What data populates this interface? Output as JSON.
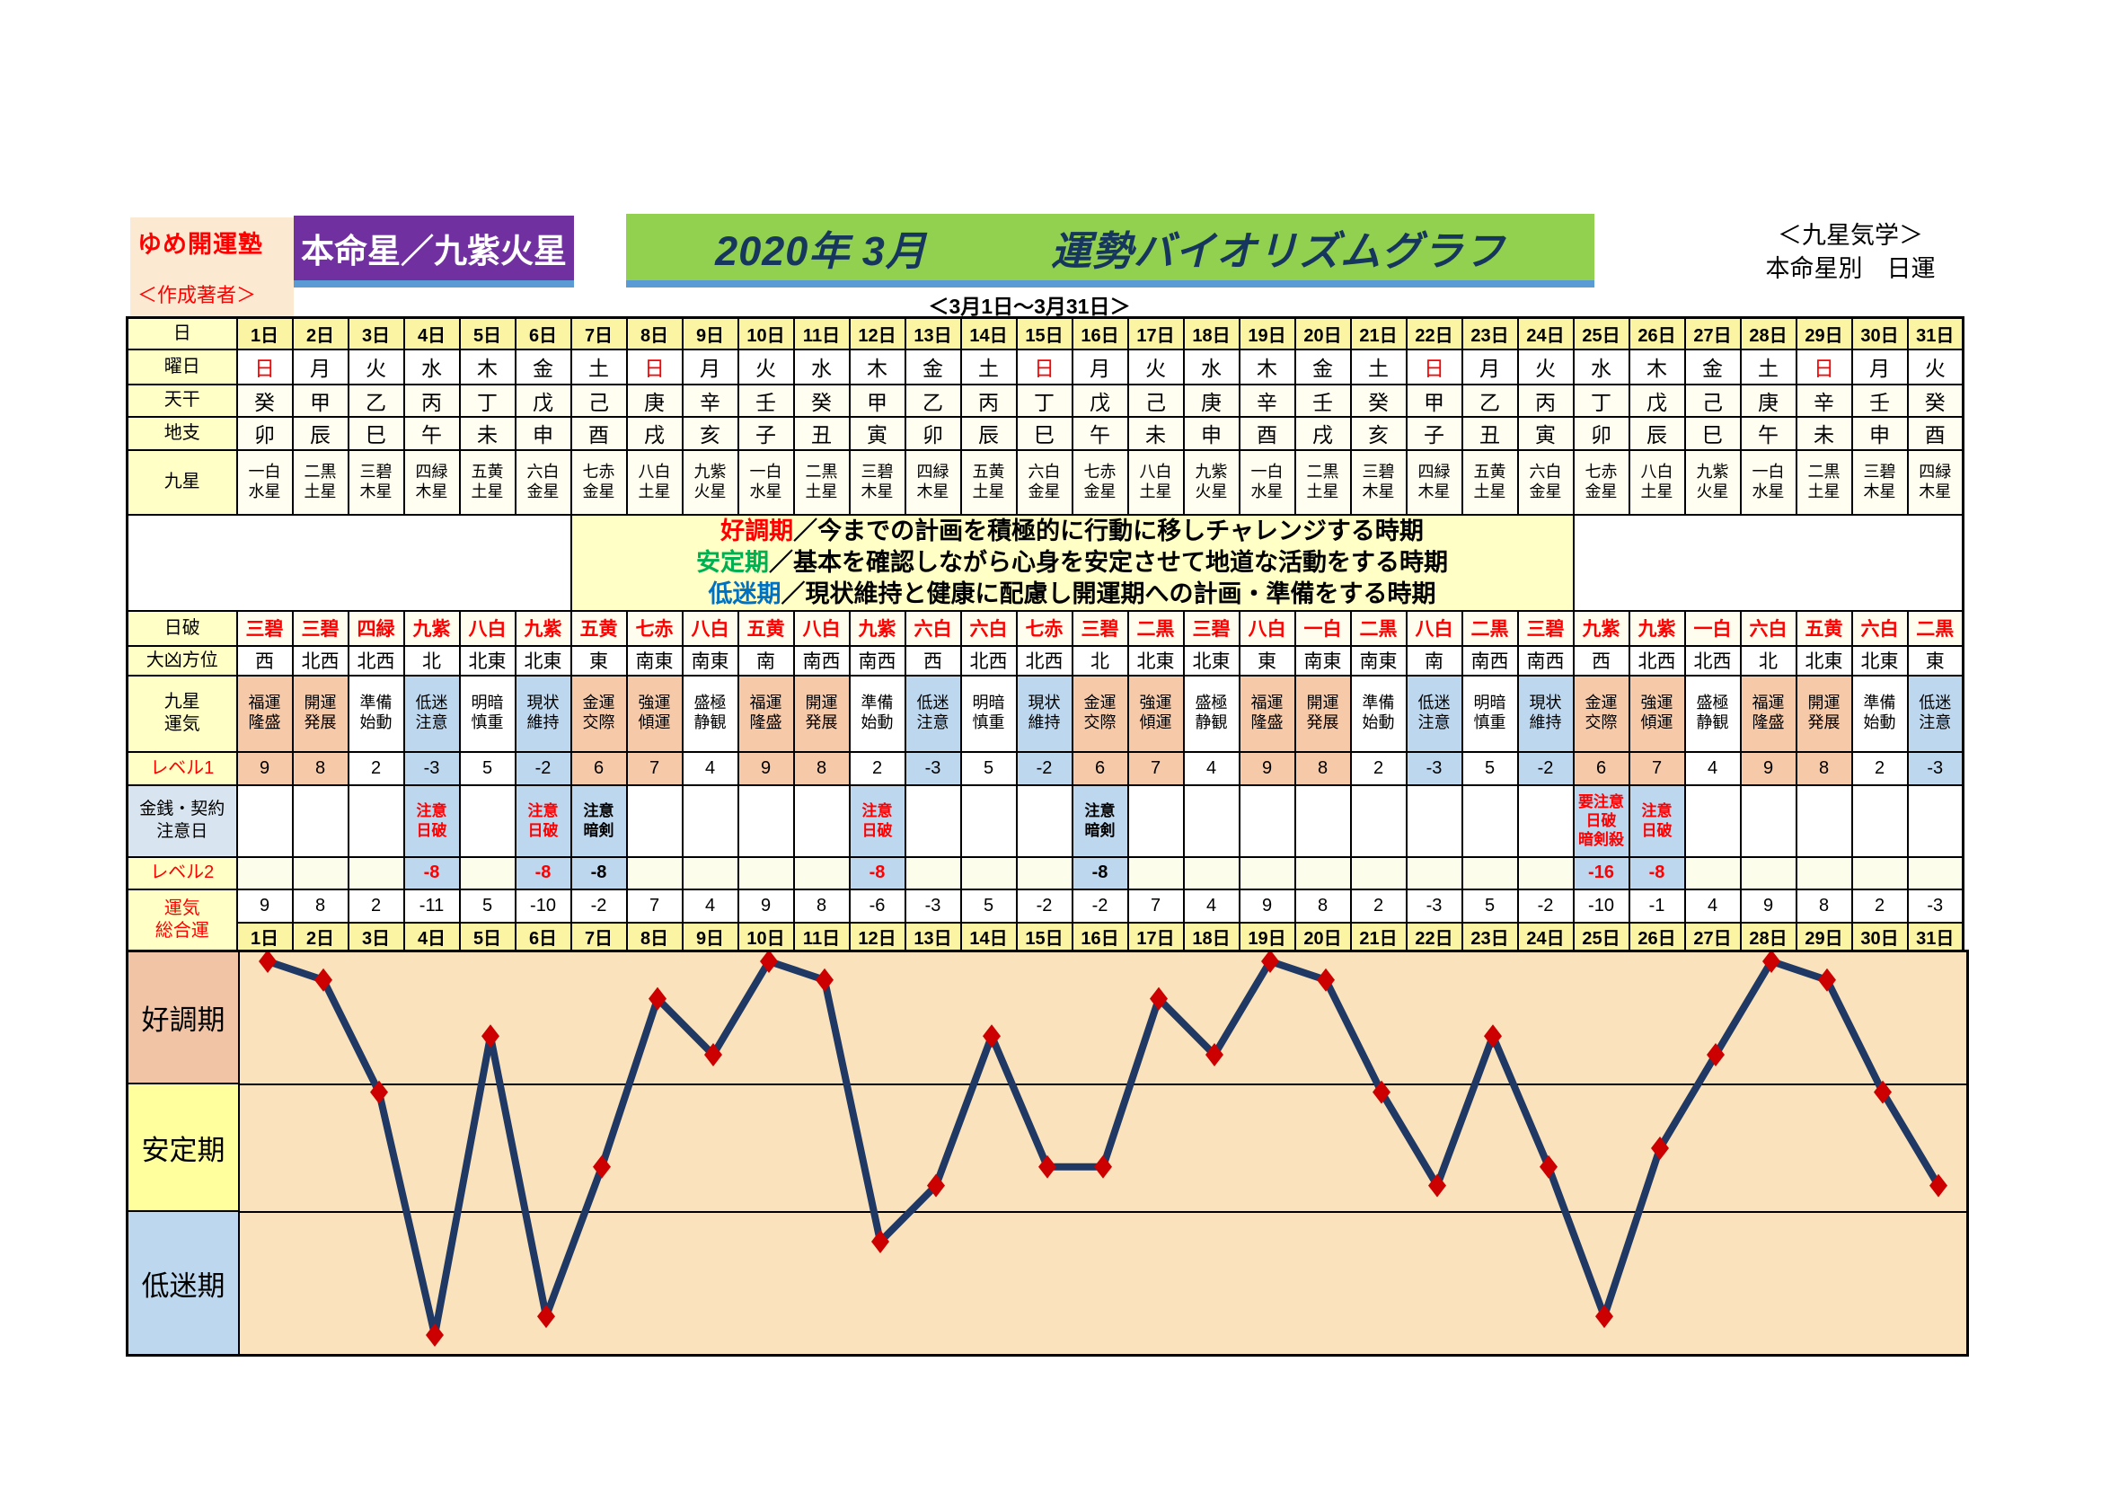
{
  "header": {
    "site": "ゆめ開運塾",
    "author": "＜作成著者＞",
    "honmeisei": "本命星／九紫火星",
    "title": "2020年 3月　　　運勢バイオリズムグラフ",
    "subtitle": "＜3月1日～3月31日＞",
    "right_line1": "＜九星気学＞",
    "right_line2": "本命星別　日運"
  },
  "legend": {
    "items": [
      {
        "term": "好調期",
        "color": "#FF0000",
        "desc": "／今までの計画を積極的に行動に移しチャレンジする時期"
      },
      {
        "term": "安定期",
        "color": "#00B050",
        "desc": "／基本を確認しながら心身を安定させて地道な活動をする時期"
      },
      {
        "term": "低迷期",
        "color": "#0070C0",
        "desc": "／現状維持と健康に配慮し開運期への計画・準備をする時期"
      }
    ]
  },
  "table": {
    "row_labels": {
      "day": "日",
      "weekday": "曜日",
      "tenkan": "天干",
      "chishi": "地支",
      "kyusei": "九星",
      "nippa": "日破",
      "daikyo": "大凶方位",
      "unki": "九星\n運気",
      "level1": "レベル1",
      "caution": "金銭・契約\n注意日",
      "level2": "レベル2",
      "total": "運気\n総合運"
    },
    "sunday_char": "日",
    "days": [
      "1日",
      "2日",
      "3日",
      "4日",
      "5日",
      "6日",
      "7日",
      "8日",
      "9日",
      "10日",
      "11日",
      "12日",
      "13日",
      "14日",
      "15日",
      "16日",
      "17日",
      "18日",
      "19日",
      "20日",
      "21日",
      "22日",
      "23日",
      "24日",
      "25日",
      "26日",
      "27日",
      "28日",
      "29日",
      "30日",
      "31日"
    ],
    "weekdays": [
      "日",
      "月",
      "火",
      "水",
      "木",
      "金",
      "土",
      "日",
      "月",
      "火",
      "水",
      "木",
      "金",
      "土",
      "日",
      "月",
      "火",
      "水",
      "木",
      "金",
      "土",
      "日",
      "月",
      "火",
      "水",
      "木",
      "金",
      "土",
      "日",
      "月",
      "火"
    ],
    "tenkan": [
      "癸",
      "甲",
      "乙",
      "丙",
      "丁",
      "戊",
      "己",
      "庚",
      "辛",
      "壬",
      "癸",
      "甲",
      "乙",
      "丙",
      "丁",
      "戊",
      "己",
      "庚",
      "辛",
      "壬",
      "癸",
      "甲",
      "乙",
      "丙",
      "丁",
      "戊",
      "己",
      "庚",
      "辛",
      "壬",
      "癸"
    ],
    "chishi": [
      "卯",
      "辰",
      "巳",
      "午",
      "未",
      "申",
      "酉",
      "戌",
      "亥",
      "子",
      "丑",
      "寅",
      "卯",
      "辰",
      "巳",
      "午",
      "未",
      "申",
      "酉",
      "戌",
      "亥",
      "子",
      "丑",
      "寅",
      "卯",
      "辰",
      "巳",
      "午",
      "未",
      "申",
      "酉"
    ],
    "kyusei": [
      "一白水星",
      "二黒土星",
      "三碧木星",
      "四緑木星",
      "五黄土星",
      "六白金星",
      "七赤金星",
      "八白土星",
      "九紫火星",
      "一白水星",
      "二黒土星",
      "三碧木星",
      "四緑木星",
      "五黄土星",
      "六白金星",
      "七赤金星",
      "八白土星",
      "九紫火星",
      "一白水星",
      "二黒土星",
      "三碧木星",
      "四緑木星",
      "五黄土星",
      "六白金星",
      "七赤金星",
      "八白土星",
      "九紫火星",
      "一白水星",
      "二黒土星",
      "三碧木星",
      "四緑木星"
    ],
    "nippa": [
      "三碧",
      "三碧",
      "四緑",
      "九紫",
      "八白",
      "九紫",
      "五黄",
      "七赤",
      "八白",
      "五黄",
      "八白",
      "九紫",
      "六白",
      "六白",
      "七赤",
      "三碧",
      "二黒",
      "三碧",
      "八白",
      "一白",
      "二黒",
      "八白",
      "二黒",
      "三碧",
      "九紫",
      "九紫",
      "一白",
      "六白",
      "五黄",
      "六白",
      "二黒"
    ],
    "daikyo_hoi": [
      "西",
      "北西",
      "北西",
      "北",
      "北東",
      "北東",
      "東",
      "南東",
      "南東",
      "南",
      "南西",
      "南西",
      "西",
      "北西",
      "北西",
      "北",
      "北東",
      "北東",
      "東",
      "南東",
      "南東",
      "南",
      "南西",
      "南西",
      "西",
      "北西",
      "北西",
      "北",
      "北東",
      "北東",
      "東"
    ],
    "unki": [
      "福運隆盛",
      "開運発展",
      "準備始動",
      "低迷注意",
      "明暗慎重",
      "現状維持",
      "金運交際",
      "強運傾運",
      "盛極静観",
      "福運隆盛",
      "開運発展",
      "準備始動",
      "低迷注意",
      "明暗慎重",
      "現状維持",
      "金運交際",
      "強運傾運",
      "盛極静観",
      "福運隆盛",
      "開運発展",
      "準備始動",
      "低迷注意",
      "明暗慎重",
      "現状維持",
      "金運交際",
      "強運傾運",
      "盛極静観",
      "福運隆盛",
      "開運発展",
      "準備始動",
      "低迷注意"
    ],
    "tones": [
      "p",
      "p",
      "w",
      "b",
      "w",
      "b",
      "p",
      "p",
      "w",
      "p",
      "p",
      "w",
      "b",
      "w",
      "b",
      "p",
      "p",
      "w",
      "p",
      "p",
      "w",
      "b",
      "w",
      "b",
      "p",
      "p",
      "w",
      "p",
      "p",
      "w",
      "b"
    ],
    "level1": [
      9,
      8,
      2,
      -3,
      5,
      -2,
      6,
      7,
      4,
      9,
      8,
      2,
      -3,
      5,
      -2,
      6,
      7,
      4,
      9,
      8,
      2,
      -3,
      5,
      -2,
      6,
      7,
      4,
      9,
      8,
      2,
      -3
    ],
    "caution": {
      "4": {
        "lines": [
          "注意",
          "日破"
        ],
        "color": "red"
      },
      "6": {
        "lines": [
          "注意",
          "日破"
        ],
        "color": "red"
      },
      "7": {
        "lines": [
          "注意",
          "暗剣"
        ],
        "color": "black"
      },
      "12": {
        "lines": [
          "注意",
          "日破"
        ],
        "color": "red"
      },
      "16": {
        "lines": [
          "注意",
          "暗剣"
        ],
        "color": "black"
      },
      "25": {
        "lines": [
          "要注意",
          "日破",
          "暗剣殺"
        ],
        "color": "red"
      },
      "26": {
        "lines": [
          "注意",
          "日破"
        ],
        "color": "red"
      }
    },
    "level2": {
      "4": {
        "value": -8,
        "color": "red"
      },
      "6": {
        "value": -8,
        "color": "red"
      },
      "7": {
        "value": -8,
        "color": "black"
      },
      "12": {
        "value": -8,
        "color": "red"
      },
      "16": {
        "value": -8,
        "color": "black"
      },
      "25": {
        "value": -16,
        "color": "red"
      },
      "26": {
        "value": -8,
        "color": "red"
      }
    },
    "total": [
      9,
      8,
      2,
      -11,
      5,
      -10,
      -2,
      7,
      4,
      9,
      8,
      -6,
      -3,
      5,
      -2,
      -2,
      7,
      4,
      9,
      8,
      2,
      -3,
      5,
      -2,
      -10,
      -1,
      4,
      9,
      8,
      2,
      -3
    ]
  },
  "graph": {
    "plot_bg": "#FAE3BC",
    "line_color": "#1F3864",
    "marker_color": "#CC0000",
    "boundaries_y": [
      147,
      289
    ],
    "bands": [
      {
        "label": "好調期",
        "color": "#F2C4A6",
        "height": 147
      },
      {
        "label": "安定期",
        "color": "#FFFF9E",
        "height": 142
      },
      {
        "label": "低迷期",
        "color": "#BDD7EE",
        "height": 158
      }
    ]
  },
  "colors": {
    "red": "#FF0000",
    "accent_purple": "#7030A0",
    "accent_green": "#92D050",
    "accent_underline": "#5B9BD5",
    "title_navy": "#17365D"
  },
  "chart_data": {
    "type": "line",
    "title": "2020年 3月 運勢バイオリズムグラフ（運気総合運）",
    "xlabel": "日",
    "ylabel": "運気総合運",
    "categories": [
      1,
      2,
      3,
      4,
      5,
      6,
      7,
      8,
      9,
      10,
      11,
      12,
      13,
      14,
      15,
      16,
      17,
      18,
      19,
      20,
      21,
      22,
      23,
      24,
      25,
      26,
      27,
      28,
      29,
      30,
      31
    ],
    "series": [
      {
        "name": "運気総合運",
        "values": [
          9,
          8,
          2,
          -11,
          5,
          -10,
          -2,
          7,
          4,
          9,
          8,
          -6,
          -3,
          5,
          -2,
          -2,
          7,
          4,
          9,
          8,
          2,
          -3,
          5,
          -2,
          -10,
          -1,
          4,
          9,
          8,
          2,
          -3
        ]
      }
    ],
    "ylim": [
      -12,
      10
    ],
    "grid": "two horizontal band-boundary lines only",
    "bands": [
      {
        "label": "好調期",
        "approx_range": [
          2.4,
          10
        ]
      },
      {
        "label": "安定期",
        "approx_range": [
          -4.4,
          2.4
        ]
      },
      {
        "label": "低迷期",
        "approx_range": [
          -12,
          -4.4
        ]
      }
    ],
    "line_color": "#1F3864",
    "marker": "diamond",
    "marker_color": "#CC0000",
    "legend_position": "none"
  }
}
